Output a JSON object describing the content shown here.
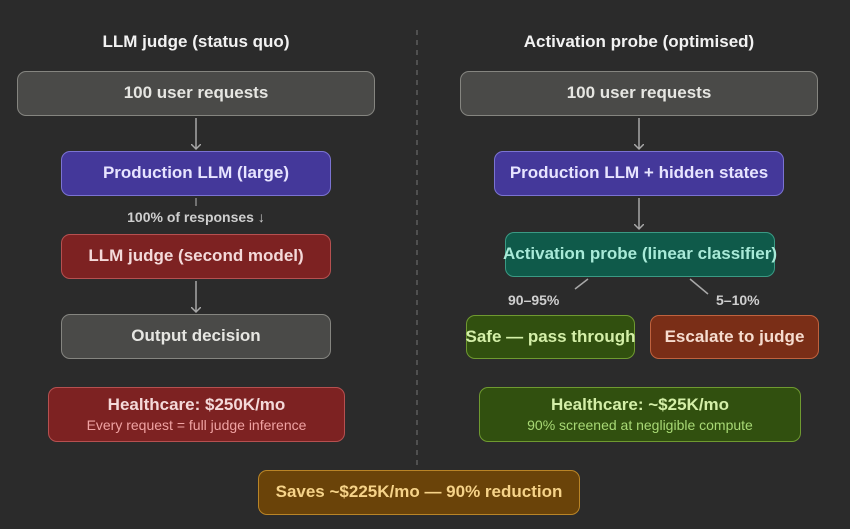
{
  "left": {
    "title": "LLM judge (status quo)",
    "requests": "100 user requests",
    "production": "Production LLM (large)",
    "responses_label": "100% of responses ↓",
    "judge": "LLM judge (second model)",
    "output": "Output decision",
    "cost_title": "Healthcare: $250K/mo",
    "cost_sub": "Every request = full judge inference"
  },
  "right": {
    "title": "Activation probe (optimised)",
    "requests": "100 user requests",
    "production": "Production LLM + hidden states",
    "probe": "Activation probe (linear classifier)",
    "safe_pct": "90–95%",
    "escalate_pct": "5–10%",
    "safe": "Safe — pass through",
    "escalate": "Escalate to judge",
    "cost_title": "Healthcare: ~$25K/mo",
    "cost_sub": "90% screened at negligible compute"
  },
  "savings": "Saves ~$225K/mo — 90% reduction",
  "colors": {
    "background": "#2b2b2b",
    "gray": "#4a4a48",
    "purple": "#44389a",
    "red": "#7d2222",
    "teal": "#0f5a4a",
    "green": "#31500f",
    "brick": "#7a2e17",
    "gold": "#6a4309"
  }
}
